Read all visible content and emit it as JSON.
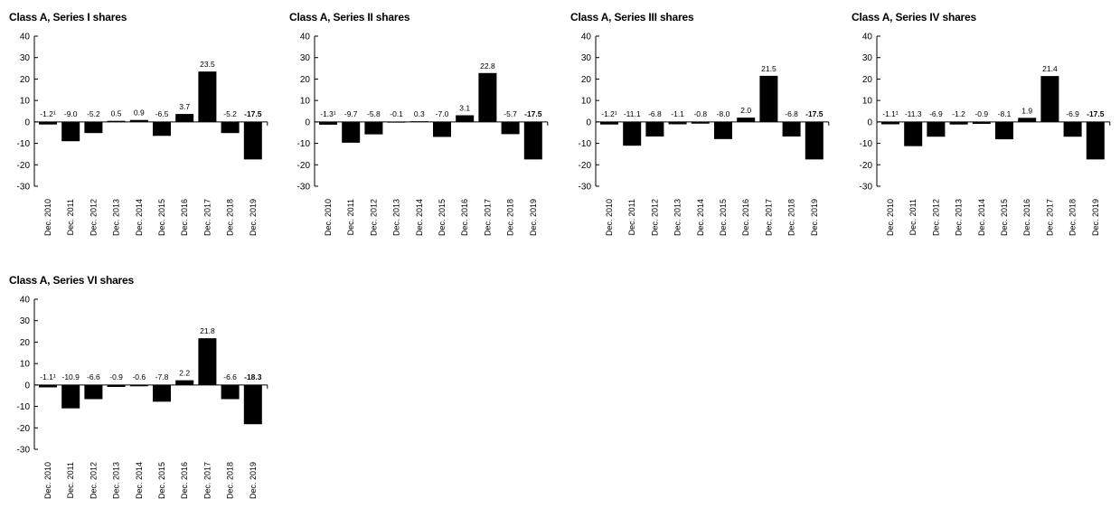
{
  "chart_data": [
    {
      "type": "bar",
      "title": "Class A, Series I shares",
      "categories": [
        "Dec. 2010",
        "Dec. 2011",
        "Dec. 2012",
        "Dec. 2013",
        "Dec. 2014",
        "Dec. 2015",
        "Dec. 2016",
        "Dec. 2017",
        "Dec. 2018",
        "Dec. 2019"
      ],
      "values": [
        -1.2,
        -9.0,
        -5.2,
        0.5,
        0.9,
        -6.5,
        3.7,
        23.5,
        -5.2,
        -17.5
      ],
      "value_labels": [
        "-1.2¹",
        "-9.0",
        "-5.2",
        "0.5",
        "0.9",
        "-6.5",
        "3.7",
        "23.5",
        "-5.2",
        "-17.5"
      ],
      "highlight_last_label": true,
      "ylim": [
        -30,
        40
      ],
      "yticks": [
        40,
        30,
        20,
        10,
        0,
        -10,
        -20,
        -30
      ],
      "ytick_labels": [
        "40",
        "30",
        "20",
        "10",
        "0",
        "-10",
        "-20",
        "-30"
      ],
      "bar_color": "#000000",
      "grid": false
    },
    {
      "type": "bar",
      "title": "Class A, Series II shares",
      "categories": [
        "Dec. 2010",
        "Dec. 2011",
        "Dec. 2012",
        "Dec. 2013",
        "Dec. 2014",
        "Dec. 2015",
        "Dec. 2016",
        "Dec. 2017",
        "Dec. 2018",
        "Dec. 2019"
      ],
      "values": [
        -1.3,
        -9.7,
        -5.8,
        -0.1,
        0.3,
        -7.0,
        3.1,
        22.8,
        -5.7,
        -17.5
      ],
      "value_labels": [
        "-1.3¹",
        "-9.7",
        "-5.8",
        "-0.1",
        "0.3",
        "-7.0",
        "3.1",
        "22.8",
        "-5.7",
        "-17.5"
      ],
      "highlight_last_label": true,
      "ylim": [
        -30,
        40
      ],
      "yticks": [
        40,
        30,
        20,
        10,
        0,
        -10,
        -20,
        -30
      ],
      "ytick_labels": [
        "40",
        "30",
        "20",
        "10",
        "0",
        "-10",
        "-20",
        "-30"
      ],
      "bar_color": "#000000",
      "grid": false
    },
    {
      "type": "bar",
      "title": "Class A, Series III shares",
      "categories": [
        "Dec. 2010",
        "Dec. 2011",
        "Dec. 2012",
        "Dec. 2013",
        "Dec. 2014",
        "Dec. 2015",
        "Dec. 2016",
        "Dec. 2017",
        "Dec. 2018",
        "Dec. 2019"
      ],
      "values": [
        -1.2,
        -11.1,
        -6.8,
        -1.1,
        -0.8,
        -8.0,
        2.0,
        21.5,
        -6.8,
        -17.5
      ],
      "value_labels": [
        "-1.2¹",
        "-11.1",
        "-6.8",
        "-1.1",
        "-0.8",
        "-8.0",
        "2.0",
        "21.5",
        "-6.8",
        "-17.5"
      ],
      "highlight_last_label": true,
      "ylim": [
        -30,
        40
      ],
      "yticks": [
        40,
        30,
        20,
        10,
        0,
        -10,
        -20,
        -30
      ],
      "ytick_labels": [
        "40",
        "30",
        "20",
        "10",
        "0",
        "-10",
        "-20",
        "-30"
      ],
      "bar_color": "#000000",
      "grid": false
    },
    {
      "type": "bar",
      "title": "Class A, Series IV shares",
      "categories": [
        "Dec. 2010",
        "Dec. 2011",
        "Dec. 2012",
        "Dec. 2013",
        "Dec. 2014",
        "Dec. 2015",
        "Dec. 2016",
        "Dec. 2017",
        "Dec. 2018",
        "Dec. 2019"
      ],
      "values": [
        -1.1,
        -11.3,
        -6.9,
        -1.2,
        -0.9,
        -8.1,
        1.9,
        21.4,
        -6.9,
        -17.5
      ],
      "value_labels": [
        "-1.1¹",
        "-11.3",
        "-6.9",
        "-1.2",
        "-0.9",
        "-8.1",
        "1.9",
        "21.4",
        "-6.9",
        "-17.5"
      ],
      "highlight_last_label": true,
      "ylim": [
        -30,
        40
      ],
      "yticks": [
        40,
        30,
        20,
        10,
        0,
        -10,
        -20,
        -30
      ],
      "ytick_labels": [
        "40",
        "30",
        "20",
        "10",
        "0",
        "-10",
        "-20",
        "-30"
      ],
      "bar_color": "#000000",
      "grid": false
    },
    {
      "type": "bar",
      "title": "Class A, Series VI shares",
      "categories": [
        "Dec. 2010",
        "Dec. 2011",
        "Dec. 2012",
        "Dec. 2013",
        "Dec. 2014",
        "Dec. 2015",
        "Dec. 2016",
        "Dec. 2017",
        "Dec. 2018",
        "Dec. 2019"
      ],
      "values": [
        -1.1,
        -10.9,
        -6.6,
        -0.9,
        -0.6,
        -7.8,
        2.2,
        21.8,
        -6.6,
        -18.3
      ],
      "value_labels": [
        "-1.1¹",
        "-10.9",
        "-6.6",
        "-0.9",
        "-0.6",
        "-7.8",
        "2.2",
        "21.8",
        "-6.6",
        "-18.3"
      ],
      "highlight_last_label": true,
      "ylim": [
        -30,
        40
      ],
      "yticks": [
        40,
        30,
        20,
        10,
        0,
        -10,
        -20,
        -30
      ],
      "ytick_labels": [
        "40",
        "30",
        "20",
        "10",
        "0",
        "-10",
        "-20",
        "-30"
      ],
      "bar_color": "#000000",
      "grid": false
    }
  ]
}
